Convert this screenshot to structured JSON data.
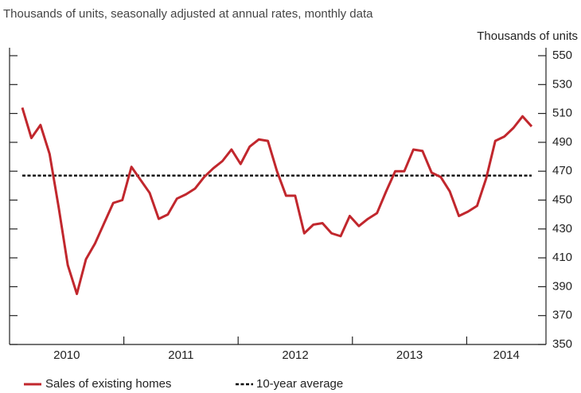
{
  "chart_data": {
    "type": "line",
    "subtitle": "Thousands of units, seasonally adjusted at annual rates, monthly data",
    "y_axis_label": "Thousands of units",
    "year_labels": [
      "2010",
      "2011",
      "2012",
      "2013",
      "2014"
    ],
    "series": [
      {
        "name": "Sales of existing homes",
        "color": "#c1272d",
        "values": [
          514,
          493,
          502,
          482,
          445,
          405,
          385,
          409,
          420,
          434,
          448,
          450,
          473,
          464,
          455,
          437,
          440,
          451,
          454,
          458,
          466,
          472,
          477,
          485,
          475,
          487,
          492,
          491,
          470,
          453,
          453,
          427,
          433,
          434,
          427,
          425,
          439,
          432,
          437,
          441,
          456,
          470,
          470,
          485,
          484,
          469,
          466,
          456,
          439,
          442,
          446,
          465,
          491,
          494,
          500,
          508,
          501
        ]
      }
    ],
    "average": {
      "name": "10-year average",
      "value": 467,
      "color": "#000000"
    },
    "ylim": [
      350,
      550
    ],
    "yticks": [
      350,
      370,
      390,
      410,
      430,
      450,
      470,
      490,
      510,
      530,
      550
    ],
    "grid": false
  }
}
